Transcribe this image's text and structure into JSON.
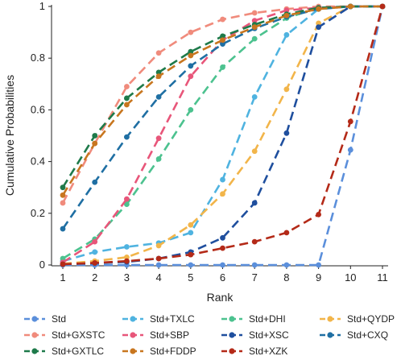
{
  "chart_data": {
    "type": "line",
    "title": "",
    "xlabel": "Rank",
    "ylabel": "Cumulative Probabilities",
    "x": [
      1,
      2,
      3,
      4,
      5,
      6,
      7,
      8,
      9,
      10,
      11
    ],
    "xlim": [
      1,
      11
    ],
    "ylim": [
      0,
      1
    ],
    "yticks": [
      "0",
      "0.2",
      "0.4",
      "0.6",
      "0.8",
      "1"
    ],
    "xticks": [
      "1",
      "2",
      "3",
      "4",
      "5",
      "6",
      "7",
      "8",
      "9",
      "10",
      "11"
    ],
    "grid": false,
    "legend_position": "bottom",
    "series": [
      {
        "name": "Std",
        "color": "#5b8fdb",
        "values": [
          0,
          0,
          0,
          0,
          0,
          0,
          0,
          0,
          0,
          0.445,
          1
        ]
      },
      {
        "name": "Std+TXLC",
        "color": "#4fb3e0",
        "values": [
          0.015,
          0.05,
          0.07,
          0.085,
          0.125,
          0.33,
          0.65,
          0.89,
          0.99,
          1,
          1
        ]
      },
      {
        "name": "Std+DHI",
        "color": "#4cc28f",
        "values": [
          0.025,
          0.1,
          0.235,
          0.41,
          0.6,
          0.765,
          0.875,
          0.955,
          0.995,
          1,
          1
        ]
      },
      {
        "name": "Std+QYDP",
        "color": "#f2b54a",
        "values": [
          0.005,
          0.015,
          0.03,
          0.075,
          0.155,
          0.275,
          0.44,
          0.68,
          0.935,
          1,
          1
        ]
      },
      {
        "name": "Std+GXSTC",
        "color": "#f08b7c",
        "values": [
          0.24,
          0.47,
          0.69,
          0.82,
          0.9,
          0.95,
          0.975,
          0.99,
          1,
          1,
          1
        ]
      },
      {
        "name": "Std+SBP",
        "color": "#e8567a",
        "values": [
          0.01,
          0.09,
          0.255,
          0.49,
          0.73,
          0.87,
          0.945,
          0.985,
          0.995,
          1,
          1
        ]
      },
      {
        "name": "Std+XSC",
        "color": "#1f4f9e",
        "values": [
          0.003,
          0.007,
          0.012,
          0.025,
          0.05,
          0.105,
          0.24,
          0.51,
          0.92,
          1,
          1
        ]
      },
      {
        "name": "Std+CXQ",
        "color": "#1f6fa3",
        "values": [
          0.14,
          0.32,
          0.495,
          0.65,
          0.77,
          0.855,
          0.915,
          0.96,
          0.99,
          1,
          1
        ]
      },
      {
        "name": "Std+GXTLC",
        "color": "#1e7a4a",
        "values": [
          0.3,
          0.5,
          0.645,
          0.745,
          0.825,
          0.885,
          0.93,
          0.97,
          0.995,
          1,
          1
        ]
      },
      {
        "name": "Std+FDDP",
        "color": "#c8761f",
        "values": [
          0.27,
          0.47,
          0.62,
          0.73,
          0.81,
          0.87,
          0.92,
          0.965,
          0.99,
          1,
          1
        ]
      },
      {
        "name": "Std+XZK",
        "color": "#b42a18",
        "values": [
          0.003,
          0.008,
          0.015,
          0.025,
          0.04,
          0.065,
          0.09,
          0.125,
          0.195,
          0.555,
          1
        ]
      }
    ],
    "legend_order": [
      "Std",
      "Std+TXLC",
      "Std+DHI",
      "Std+QYDP",
      "Std+GXSTC",
      "Std+SBP",
      "Std+XSC",
      "Std+CXQ",
      "Std+GXTLC",
      "Std+FDDP",
      "Std+XZK"
    ]
  }
}
